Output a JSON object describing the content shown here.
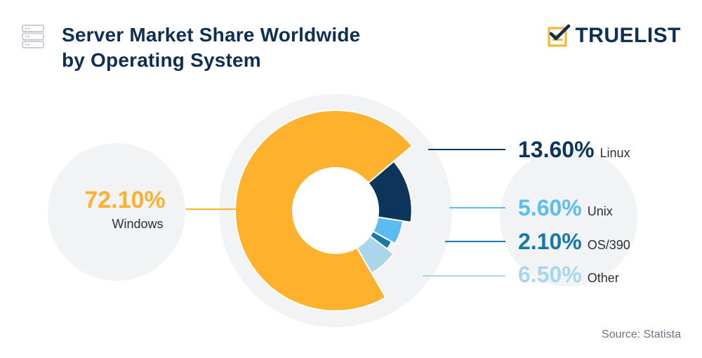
{
  "header": {
    "title_line1": "Server Market Share Worldwide",
    "title_line2": "by Operating System",
    "brand": "TRUELIST",
    "source": "Source: Statista"
  },
  "icons": {
    "server": "server-icon",
    "brand_mark": "checklist-logo-icon"
  },
  "colors": {
    "title": "#0f2f52",
    "windows": "#fdb12d",
    "linux": "#0d355b",
    "unix": "#5bbcf2",
    "os390": "#1779a8",
    "other": "#a9d6ea",
    "ring_bg": "#f1f3f5"
  },
  "chart_data": {
    "type": "pie",
    "variant": "donut",
    "title": "Server Market Share Worldwide by Operating System",
    "unit": "%",
    "categories": [
      "Windows",
      "Linux",
      "Unix",
      "OS/390",
      "Other"
    ],
    "values": [
      72.1,
      13.6,
      5.6,
      2.1,
      6.5
    ],
    "value_labels": [
      "72.10%",
      "13.60%",
      "5.60%",
      "2.10%",
      "6.50%"
    ],
    "colors": [
      "#fdb12d",
      "#0d355b",
      "#5bbcf2",
      "#1779a8",
      "#a9d6ea"
    ],
    "slice_radii": [
      1.0,
      0.76,
      0.68,
      0.64,
      0.72
    ],
    "label_side": [
      "left",
      "right",
      "right",
      "right",
      "right"
    ],
    "legend": "inline-callouts"
  }
}
